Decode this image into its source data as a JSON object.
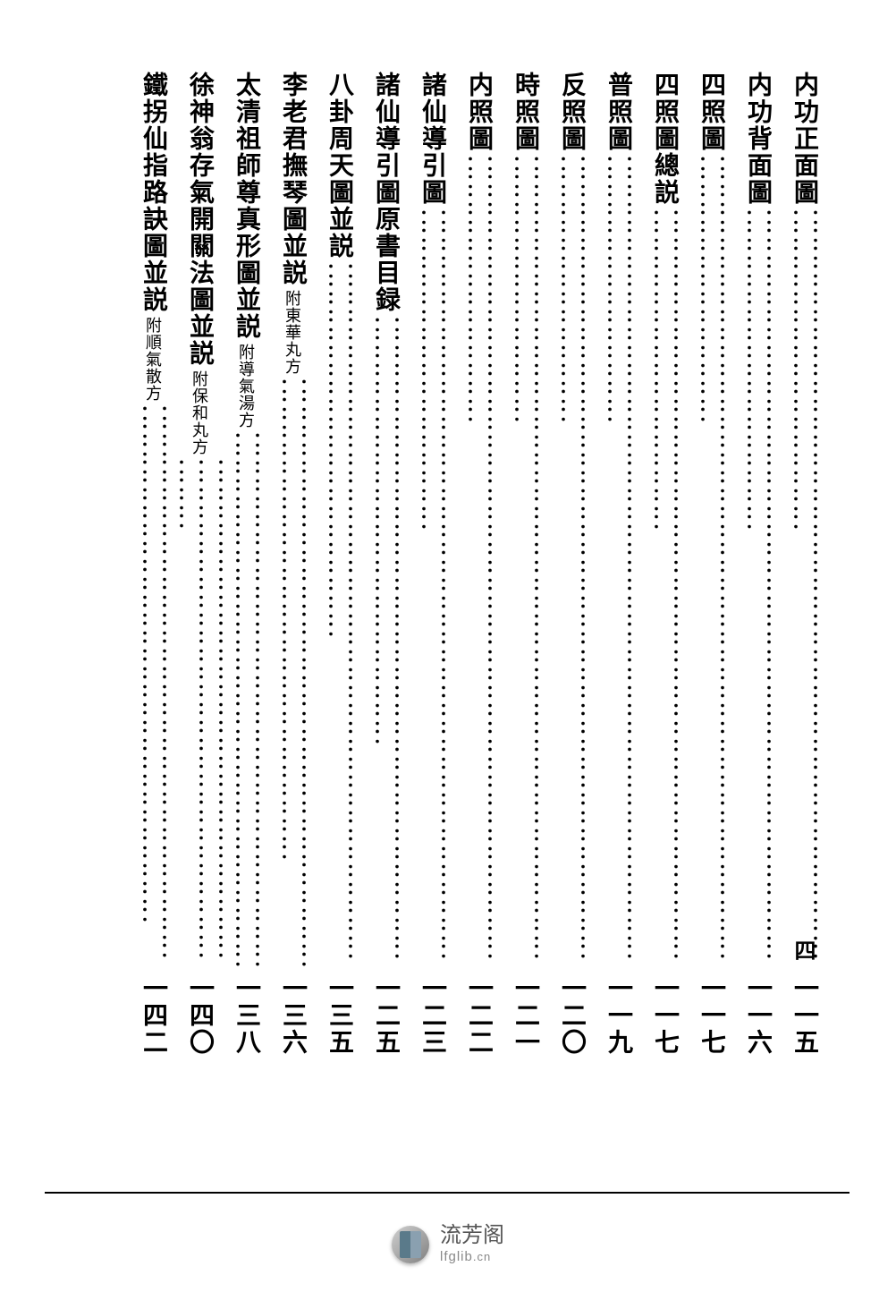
{
  "page_number": "四",
  "background_color": "#ffffff",
  "text_color": "#000000",
  "title_fontsize": 28,
  "appendix_fontsize": 18,
  "pagenum_fontsize": 28,
  "toc_entries": [
    {
      "title": "内功正面圖",
      "appendix": "",
      "pagenum": "一一五"
    },
    {
      "title": "内功背面圖",
      "appendix": "",
      "pagenum": "一一六"
    },
    {
      "title": "四照圖",
      "appendix": "",
      "pagenum": "一一七"
    },
    {
      "title": "四照圖總説",
      "appendix": "",
      "pagenum": "一一七"
    },
    {
      "title": "普照圖",
      "appendix": "",
      "pagenum": "一一九"
    },
    {
      "title": "反照圖",
      "appendix": "",
      "pagenum": "一二〇"
    },
    {
      "title": "時照圖",
      "appendix": "",
      "pagenum": "一二一"
    },
    {
      "title": "内照圖",
      "appendix": "",
      "pagenum": "一二二"
    },
    {
      "title": "諸仙導引圖",
      "appendix": "",
      "pagenum": "一二三"
    },
    {
      "title": "諸仙導引圖原書目録",
      "appendix": "",
      "pagenum": "一二五"
    },
    {
      "title": "八卦周天圖並説",
      "appendix": "",
      "pagenum": "一三五"
    },
    {
      "title": "李老君撫琴圖並説",
      "appendix": "附東華丸方",
      "pagenum": "一三六"
    },
    {
      "title": "太清祖師尊真形圖並説",
      "appendix": "附導氣湯方",
      "pagenum": "一三八"
    },
    {
      "title": "徐神翁存氣開關法圖並説",
      "appendix": "附保和丸方",
      "pagenum": "一四〇"
    },
    {
      "title": "鐵拐仙指路訣圖並説",
      "appendix": "附順氣散方",
      "pagenum": "一四二"
    }
  ],
  "footer": {
    "site_name_cn": "流芳阁",
    "site_url": "lfglib",
    "site_ext": ".cn"
  }
}
